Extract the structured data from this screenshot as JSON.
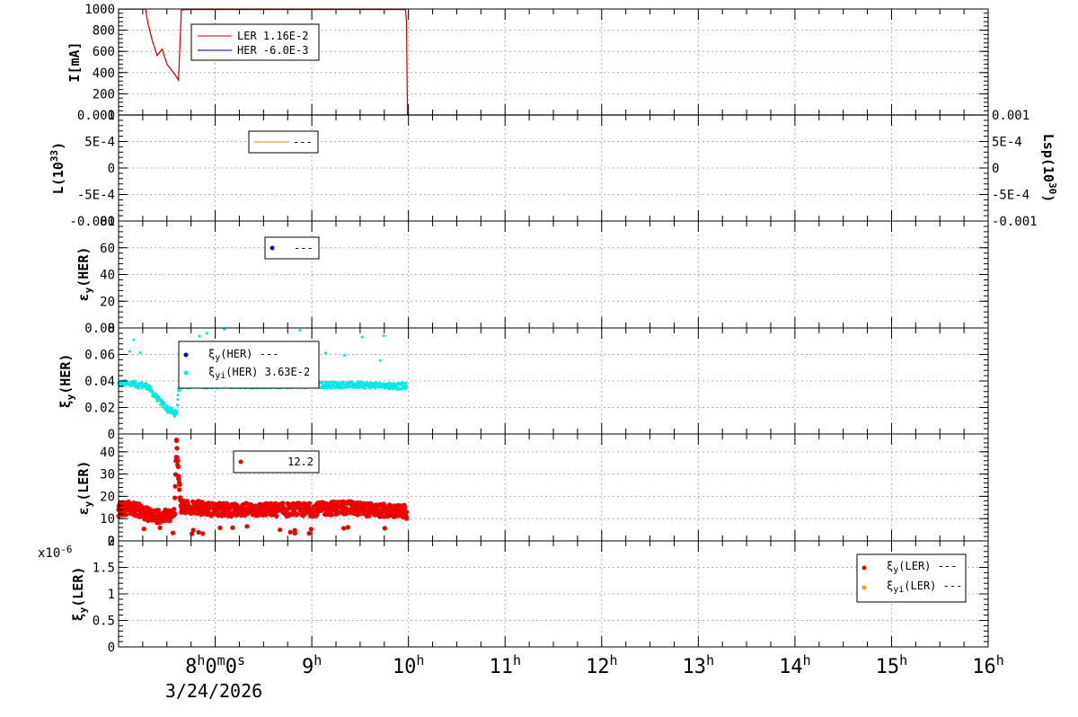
{
  "chart_data": [
    {
      "type": "line",
      "panel": "beam-current",
      "ylabel": "I[mA]",
      "ylim": [
        0,
        1000
      ],
      "yticks": [
        "0",
        "200",
        "400",
        "600",
        "800",
        "1000"
      ],
      "grid": true,
      "legend": {
        "placement": "top-left",
        "entries": [
          "LER  1.16E-2",
          "HER  -6.0E-3"
        ]
      },
      "series": [
        {
          "name": "LER",
          "color": "#cc0000",
          "x": [
            7.0,
            7.28,
            7.3,
            7.35,
            7.4,
            7.45,
            7.5,
            7.55,
            7.6,
            7.62,
            7.65,
            7.7,
            7.8,
            9.0,
            9.97,
            9.98,
            9.99
          ],
          "y": [
            998,
            998,
            880,
            700,
            560,
            620,
            480,
            420,
            360,
            330,
            990,
            995,
            995,
            995,
            995,
            880,
            0
          ]
        },
        {
          "name": "HER",
          "color": "#000080",
          "x": [
            7.0,
            16.0
          ],
          "y": [
            0,
            0
          ]
        }
      ]
    },
    {
      "type": "line",
      "panel": "luminosity",
      "ylabel": "L(10^33)",
      "y2label": "Lsp(10^30)",
      "ylim": [
        -0.001,
        0.001
      ],
      "yticks": [
        "-0.001",
        "-5E-4",
        "0",
        "5E-4",
        "0.001"
      ],
      "grid": true,
      "legend": {
        "placement": "top-left",
        "entries": [
          "---"
        ]
      },
      "series": []
    },
    {
      "type": "scatter",
      "panel": "emittance-her",
      "ylabel": "ε_y(HER)",
      "ylim": [
        0,
        80
      ],
      "yticks": [
        "0",
        "20",
        "40",
        "60",
        "80"
      ],
      "grid": true,
      "legend": {
        "placement": "top-left",
        "entries": [
          "---"
        ]
      },
      "series": []
    },
    {
      "type": "scatter",
      "panel": "beam-beam-her",
      "ylabel": "ξ_y(HER)",
      "ylim": [
        0,
        0.08
      ],
      "yticks": [
        "0",
        "0.02",
        "0.04",
        "0.06",
        "0.08"
      ],
      "grid": true,
      "legend": {
        "placement": "top-left",
        "entries": [
          "ξy(HER) ---",
          "ξyi(HER)  3.63E-2"
        ]
      },
      "series": [
        {
          "name": "ξyi(HER)",
          "color": "#00e8e8",
          "x": [
            7.0,
            7.1,
            7.2,
            7.3,
            7.35,
            7.4,
            7.45,
            7.5,
            7.55,
            7.6,
            7.62,
            7.65,
            7.8,
            8.0,
            8.5,
            9.0,
            9.5,
            9.98
          ],
          "y": [
            0.038,
            0.038,
            0.037,
            0.036,
            0.031,
            0.027,
            0.023,
            0.019,
            0.017,
            0.015,
            0.034,
            0.037,
            0.037,
            0.037,
            0.037,
            0.037,
            0.037,
            0.036
          ]
        }
      ]
    },
    {
      "type": "scatter",
      "panel": "emittance-ler",
      "ylabel": "ε_y(LER)",
      "ylim": [
        0,
        48
      ],
      "yticks": [
        "0",
        "10",
        "20",
        "30",
        "40"
      ],
      "grid": true,
      "legend": {
        "placement": "top-left",
        "entries": [
          "12.2"
        ]
      },
      "series": [
        {
          "name": "εy(LER)",
          "color": "#ee0000",
          "x": [
            7.0,
            7.1,
            7.2,
            7.3,
            7.4,
            7.5,
            7.58,
            7.6,
            7.62,
            7.65,
            7.8,
            8.0,
            8.3,
            8.6,
            9.0,
            9.3,
            9.6,
            9.98
          ],
          "y": [
            14,
            15,
            14,
            12,
            11,
            11,
            12,
            45,
            29,
            15,
            15,
            14,
            14,
            14,
            14,
            15,
            14,
            13
          ]
        }
      ]
    },
    {
      "type": "scatter",
      "panel": "beam-beam-ler",
      "ylabel": "ξ_y(LER)",
      "ylim": [
        0,
        2
      ],
      "yticks": [
        "0",
        "0.5",
        "1",
        "1.5",
        "2"
      ],
      "multiplier": "x10^-6",
      "grid": true,
      "legend": {
        "placement": "top-right",
        "entries": [
          "ξy(LER) ---",
          "ξyi(LER) ---"
        ]
      },
      "series": []
    }
  ],
  "xaxis": {
    "range_hours": [
      7.0,
      16.0
    ],
    "ticks": [
      {
        "h": 8,
        "label": "8h0m0s"
      },
      {
        "h": 9,
        "label": "9h"
      },
      {
        "h": 10,
        "label": "10h"
      },
      {
        "h": 11,
        "label": "11h"
      },
      {
        "h": 12,
        "label": "12h"
      },
      {
        "h": 13,
        "label": "13h"
      },
      {
        "h": 14,
        "label": "14h"
      },
      {
        "h": 15,
        "label": "15h"
      },
      {
        "h": 16,
        "label": "16h"
      }
    ],
    "date": "3/24/2026"
  },
  "texts": {
    "p0_ylabel": "I[mA]",
    "p0_leg1": "LER  1.16E-2",
    "p0_leg2": "HER  -6.0E-3",
    "p1_ylabel": "L(10",
    "p1_ylabel_exp": "33",
    "p1_ylabel_end": ")",
    "p1_y2label": "Lsp(10",
    "p1_y2label_exp": "30",
    "p1_y2label_end": ")",
    "p1_leg1": "---",
    "p2_ylabel": "ε",
    "p2_ylabel_sub": "y",
    "p2_ylabel_end": "(HER)",
    "p2_leg1": "---",
    "p3_ylabel": "ξ",
    "p3_ylabel_sub": "y",
    "p3_ylabel_end": "(HER)",
    "p3_leg1a": "ξ",
    "p3_leg1b": "y",
    "p3_leg1c": "(HER) ---",
    "p3_leg2a": "ξ",
    "p3_leg2b": "yi",
    "p3_leg2c": "(HER)  3.63E-2",
    "p4_ylabel": "ε",
    "p4_ylabel_sub": "y",
    "p4_ylabel_end": "(LER)",
    "p4_leg1": "12.2",
    "p5_ylabel": "ξ",
    "p5_ylabel_sub": "y",
    "p5_ylabel_end": "(LER)",
    "p5_mult": "x10",
    "p5_mult_exp": "-6",
    "p5_leg1a": "ξ",
    "p5_leg1b": "y",
    "p5_leg1c": "(LER) ---",
    "p5_leg2a": "ξ",
    "p5_leg2b": "yi",
    "p5_leg2c": "(LER) ---"
  }
}
